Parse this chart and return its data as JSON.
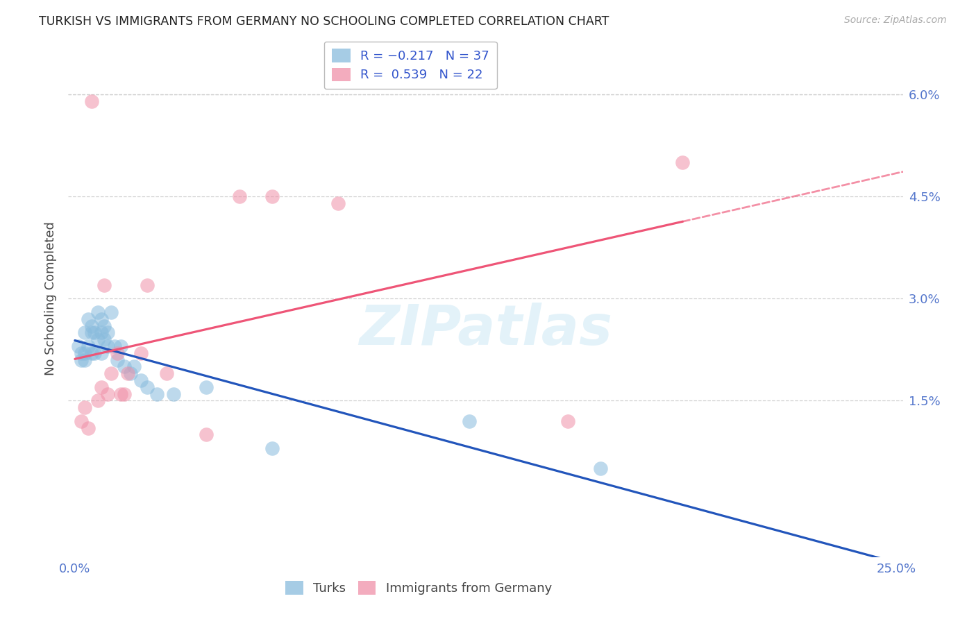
{
  "title": "TURKISH VS IMMIGRANTS FROM GERMANY NO SCHOOLING COMPLETED CORRELATION CHART",
  "source": "Source: ZipAtlas.com",
  "ylabel": "No Schooling Completed",
  "xlim": [
    -0.002,
    0.252
  ],
  "ylim": [
    -0.008,
    0.068
  ],
  "xticks": [
    0.0,
    0.05,
    0.1,
    0.15,
    0.2,
    0.25
  ],
  "xtick_labels": [
    "0.0%",
    "",
    "",
    "",
    "",
    "25.0%"
  ],
  "yticks": [
    0.015,
    0.03,
    0.045,
    0.06
  ],
  "ytick_labels": [
    "1.5%",
    "3.0%",
    "4.5%",
    "6.0%"
  ],
  "turks_color": "#88bbdd",
  "germany_color": "#f090a8",
  "turks_line_color": "#2255bb",
  "germany_line_color": "#ee5577",
  "turks_x": [
    0.001,
    0.002,
    0.002,
    0.003,
    0.003,
    0.003,
    0.004,
    0.004,
    0.005,
    0.005,
    0.005,
    0.006,
    0.006,
    0.007,
    0.007,
    0.008,
    0.008,
    0.008,
    0.009,
    0.009,
    0.01,
    0.01,
    0.011,
    0.012,
    0.013,
    0.014,
    0.015,
    0.017,
    0.018,
    0.02,
    0.022,
    0.025,
    0.03,
    0.04,
    0.06,
    0.12,
    0.16
  ],
  "turks_y": [
    0.023,
    0.022,
    0.021,
    0.025,
    0.022,
    0.021,
    0.027,
    0.023,
    0.026,
    0.025,
    0.022,
    0.025,
    0.022,
    0.028,
    0.024,
    0.027,
    0.025,
    0.022,
    0.026,
    0.024,
    0.025,
    0.023,
    0.028,
    0.023,
    0.021,
    0.023,
    0.02,
    0.019,
    0.02,
    0.018,
    0.017,
    0.016,
    0.016,
    0.017,
    0.008,
    0.012,
    0.005
  ],
  "germany_x": [
    0.002,
    0.003,
    0.004,
    0.005,
    0.007,
    0.008,
    0.009,
    0.01,
    0.011,
    0.013,
    0.014,
    0.015,
    0.016,
    0.02,
    0.022,
    0.028,
    0.04,
    0.05,
    0.06,
    0.08,
    0.15,
    0.185
  ],
  "germany_y": [
    0.012,
    0.014,
    0.011,
    0.059,
    0.015,
    0.017,
    0.032,
    0.016,
    0.019,
    0.022,
    0.016,
    0.016,
    0.019,
    0.022,
    0.032,
    0.019,
    0.01,
    0.045,
    0.045,
    0.044,
    0.012,
    0.05
  ],
  "watermark": "ZIPatlas",
  "background_color": "#ffffff",
  "grid_color": "#cccccc",
  "title_color": "#222222",
  "axis_color": "#5577cc",
  "source_color": "#aaaaaa"
}
